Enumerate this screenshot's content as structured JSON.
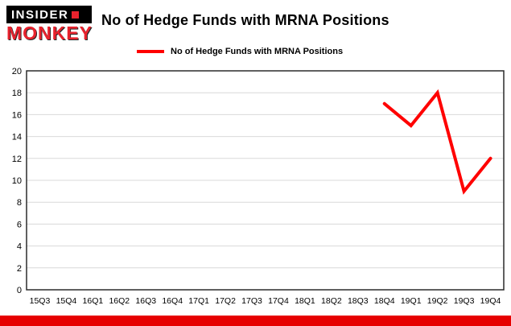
{
  "brand": {
    "line1": "INSIDER",
    "line2": "MONKEY"
  },
  "title": "No of Hedge Funds with MRNA Positions",
  "legend": {
    "label": "No of Hedge Funds with MRNA Positions"
  },
  "chart_data": {
    "type": "line",
    "title": "No of Hedge Funds with MRNA Positions",
    "categories": [
      "15Q3",
      "15Q4",
      "16Q1",
      "16Q2",
      "16Q3",
      "16Q4",
      "17Q1",
      "17Q2",
      "17Q3",
      "17Q4",
      "18Q1",
      "18Q2",
      "18Q3",
      "18Q4",
      "19Q1",
      "19Q2",
      "19Q3",
      "19Q4"
    ],
    "series": [
      {
        "name": "No of Hedge Funds with MRNA Positions",
        "color": "#ff0000",
        "values": [
          null,
          null,
          null,
          null,
          null,
          null,
          null,
          null,
          null,
          null,
          null,
          null,
          null,
          17,
          15,
          18,
          9,
          12
        ]
      }
    ],
    "xlabel": "",
    "ylabel": "",
    "ylim": [
      0,
      20
    ],
    "ytick_step": 2,
    "grid": true,
    "legend_position": "top"
  },
  "colors": {
    "line": "#ff0000",
    "bottom_bar": "#e60000",
    "grid": "#d9d9d9",
    "plot_border": "#2b2b2b",
    "logo_red": "#e8222d"
  }
}
